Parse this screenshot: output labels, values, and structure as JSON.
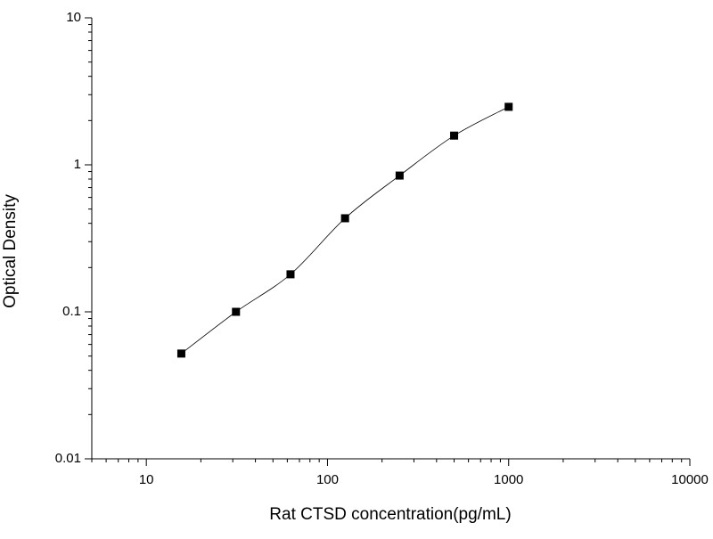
{
  "chart_data": {
    "type": "scatter",
    "x_label": "Rat CTSD concentration(pg/mL)",
    "y_label": "Optical Density",
    "x_log": true,
    "y_log": true,
    "xlim": [
      5,
      10000
    ],
    "ylim": [
      0.01,
      10
    ],
    "xticks": [
      10,
      100,
      1000,
      10000
    ],
    "yticks": [
      0.01,
      0.1,
      1,
      10
    ],
    "xminorticks": [
      5,
      6,
      7,
      8,
      9,
      20,
      30,
      40,
      50,
      60,
      70,
      80,
      90,
      200,
      300,
      400,
      500,
      600,
      700,
      800,
      900,
      2000,
      3000,
      4000,
      5000,
      6000,
      7000,
      8000,
      9000
    ],
    "yminorticks": [
      0.02,
      0.03,
      0.04,
      0.05,
      0.06,
      0.07,
      0.08,
      0.09,
      0.2,
      0.3,
      0.4,
      0.5,
      0.6,
      0.7,
      0.8,
      0.9,
      2,
      3,
      4,
      5,
      6,
      7,
      8,
      9
    ],
    "series": [
      {
        "color": "#000000",
        "fit_line": true,
        "x": [
          15.6,
          31.25,
          62.5,
          125,
          250,
          500,
          1000
        ],
        "values": [
          0.052,
          0.1,
          0.18,
          0.433,
          0.845,
          1.58,
          2.48
        ]
      }
    ]
  }
}
